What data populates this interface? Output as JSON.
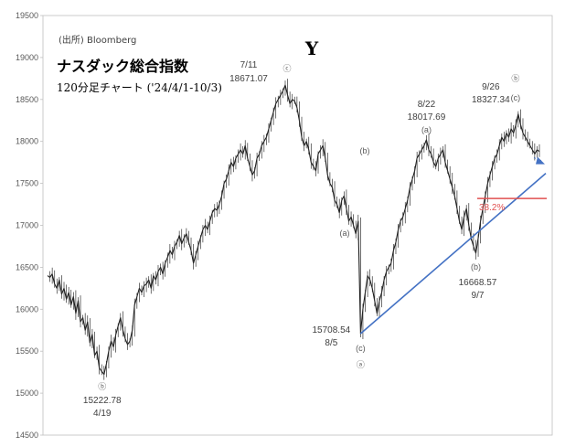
{
  "chart_data": {
    "type": "line",
    "source": "(出所) Bloomberg",
    "title": "ナスダック総合指数",
    "subtitle": "120分足チャート ('24/4/1-10/3)",
    "ylim": [
      14500,
      19500
    ],
    "yticks": [
      14500,
      15000,
      15500,
      16000,
      16500,
      17000,
      17500,
      18000,
      18500,
      19000,
      19500
    ],
    "grid": false,
    "wave_label_Y": "Y",
    "series": [
      {
        "values": [
          16400,
          16380,
          16420,
          16300,
          16250,
          16350,
          16180,
          16250,
          16120,
          16200,
          16050,
          16150,
          15950,
          16100,
          15850,
          15900,
          15750,
          15850,
          15600,
          15700,
          15450,
          15500,
          15300,
          15260,
          15223,
          15350,
          15500,
          15620,
          15550,
          15700,
          15800,
          15900,
          15750,
          15650,
          15580,
          15620,
          15750,
          16050,
          16150,
          16250,
          16200,
          16280,
          16300,
          16350,
          16250,
          16400,
          16350,
          16450,
          16500,
          16420,
          16550,
          16620,
          16700,
          16650,
          16750,
          16800,
          16880,
          16780,
          16850,
          16900,
          16800,
          16700,
          16550,
          16650,
          16750,
          16850,
          16950,
          17000,
          16950,
          17050,
          17150,
          17200,
          17180,
          17250,
          17350,
          17500,
          17550,
          17650,
          17750,
          17700,
          17800,
          17850,
          17900,
          17850,
          17950,
          17800,
          17700,
          17600,
          17650,
          17800,
          17850,
          17950,
          18000,
          18050,
          18150,
          18250,
          18350,
          18450,
          18500,
          18550,
          18600,
          18671,
          18550,
          18450,
          18500,
          18480,
          18400,
          18250,
          18050,
          17950,
          18000,
          17900,
          17750,
          17700,
          17650,
          17850,
          17900,
          17950,
          17800,
          17600,
          17500,
          17450,
          17300,
          17250,
          17150,
          17300,
          17350,
          17200,
          17050,
          17100,
          17000,
          16900,
          17050,
          15709,
          16000,
          16200,
          16400,
          16350,
          16250,
          16100,
          15950,
          16100,
          16200,
          16350,
          16450,
          16500,
          16550,
          16700,
          16800,
          16950,
          17050,
          17100,
          17200,
          17300,
          17450,
          17550,
          17650,
          17800,
          17850,
          17900,
          17950,
          18018,
          17900,
          17850,
          17750,
          17700,
          17800,
          17850,
          17900,
          17750,
          17650,
          17550,
          17450,
          17350,
          17200,
          17050,
          16950,
          17100,
          17200,
          17000,
          16850,
          16750,
          16669,
          16850,
          17050,
          17200,
          17350,
          17500,
          17600,
          17700,
          17800,
          17850,
          17950,
          18050,
          18000,
          18100,
          18050,
          18150,
          18100,
          18200,
          18327,
          18200,
          18100,
          18050,
          18000,
          17950,
          17900,
          17850,
          17900,
          17880
        ]
      }
    ],
    "annotations": [
      {
        "date": "7/11",
        "value": "18671.07",
        "wave": "ⓒ"
      },
      {
        "date": "8/22",
        "value": "18017.69",
        "wave": "(a)"
      },
      {
        "date": "9/26",
        "value": "18327.34",
        "wave": "ⓑ",
        "wave2": "(c)"
      },
      {
        "value": "15708.54",
        "date": "8/5",
        "wave": "(c)",
        "wave2": "ⓐ"
      },
      {
        "value": "16668.57",
        "date": "9/7",
        "wave": "(b)"
      },
      {
        "value": "15222.78",
        "date": "4/19",
        "wave": "ⓑ"
      },
      {
        "wave": "(b)"
      },
      {
        "wave": "(a)"
      }
    ],
    "trendline": {
      "from_value": 15709,
      "to_value": 17620
    },
    "fib_level": {
      "label": "38.2%",
      "value": 17320
    },
    "colors": {
      "series": "#1a1a1a",
      "trendline": "#4472c4",
      "fib": "#e05050",
      "arrow": "#4472c4"
    }
  }
}
